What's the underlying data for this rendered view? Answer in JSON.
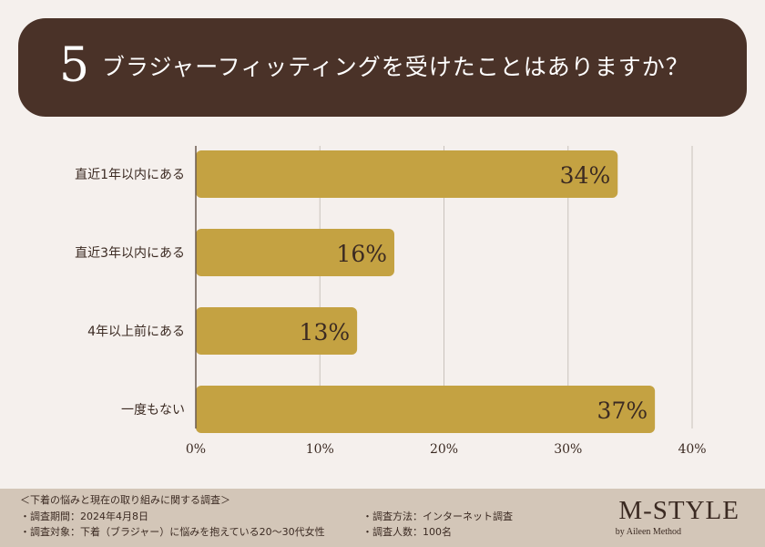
{
  "question": {
    "number": "5",
    "text": "ブラジャーフィッティングを受けたことはありますか？"
  },
  "chart_data": {
    "type": "bar",
    "orientation": "horizontal",
    "categories": [
      "直近1年以内にある",
      "直近3年以内にある",
      "4年以上前にある",
      "一度もない"
    ],
    "values": [
      34,
      16,
      13,
      37
    ],
    "value_labels": [
      "34%",
      "16%",
      "13%",
      "37%"
    ],
    "xlim": [
      0,
      40
    ],
    "x_ticks": [
      0,
      10,
      20,
      30,
      40
    ],
    "x_tick_labels": [
      "0%",
      "10%",
      "20%",
      "30%",
      "40%"
    ],
    "grid": true,
    "bar_color": "#c4a242",
    "title": "",
    "xlabel": "",
    "ylabel": ""
  },
  "survey": {
    "title": "＜下着の悩みと現在の取り組みに関する調査＞",
    "period": "・調査期間：2024年4月8日",
    "target": "・調査対象：下着（ブラジャー）に悩みを抱えている20〜30代女性",
    "method": "・調査方法：インターネット調査",
    "count": "・調査人数：100名"
  },
  "brand": {
    "name": "M-STYLE",
    "tagline": "by Aileen Method"
  },
  "colors": {
    "header_bg": "#4a3228",
    "page_bg": "#f5f0ed",
    "bar": "#c4a242",
    "footer_bg": "#d3c6b8",
    "text": "#3b2a22",
    "grid": "#c9c2bc"
  }
}
